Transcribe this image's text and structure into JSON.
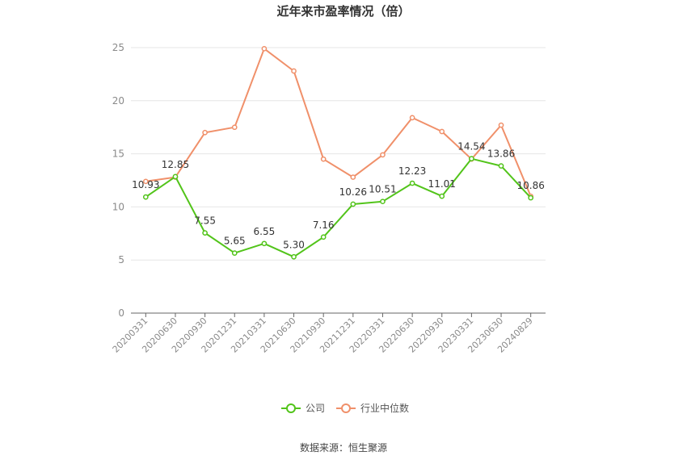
{
  "chart_data": {
    "type": "line",
    "title": "近年来市盈率情况（倍）",
    "categories": [
      "20200331",
      "20200630",
      "20200930",
      "20201231",
      "20210331",
      "20210630",
      "20210930",
      "20211231",
      "20220331",
      "20220630",
      "20220930",
      "20230331",
      "20230630",
      "20240829"
    ],
    "series": [
      {
        "name": "公司",
        "color": "#52c41a",
        "values": [
          10.93,
          12.85,
          7.55,
          5.65,
          6.55,
          5.3,
          7.16,
          10.26,
          10.51,
          12.23,
          11.01,
          14.54,
          13.86,
          10.86
        ],
        "labels": [
          "10.93",
          "12.85",
          "7.55",
          "5.65",
          "6.55",
          "5.30",
          "7.16",
          "10.26",
          "10.51",
          "12.23",
          "11.01",
          "14.54",
          "13.86",
          "10.86"
        ]
      },
      {
        "name": "行业中位数",
        "color": "#f0906a",
        "values": [
          12.4,
          12.8,
          17.0,
          17.5,
          24.9,
          22.8,
          14.5,
          12.8,
          14.9,
          18.4,
          17.1,
          14.5,
          17.7,
          11.0
        ]
      }
    ],
    "ylim": [
      0,
      25
    ],
    "yticks": [
      "0",
      "5",
      "10",
      "15",
      "20",
      "25"
    ],
    "grid": true,
    "legend": "bottom",
    "xlabel": "",
    "ylabel": ""
  },
  "source": "数据来源：恒生聚源"
}
